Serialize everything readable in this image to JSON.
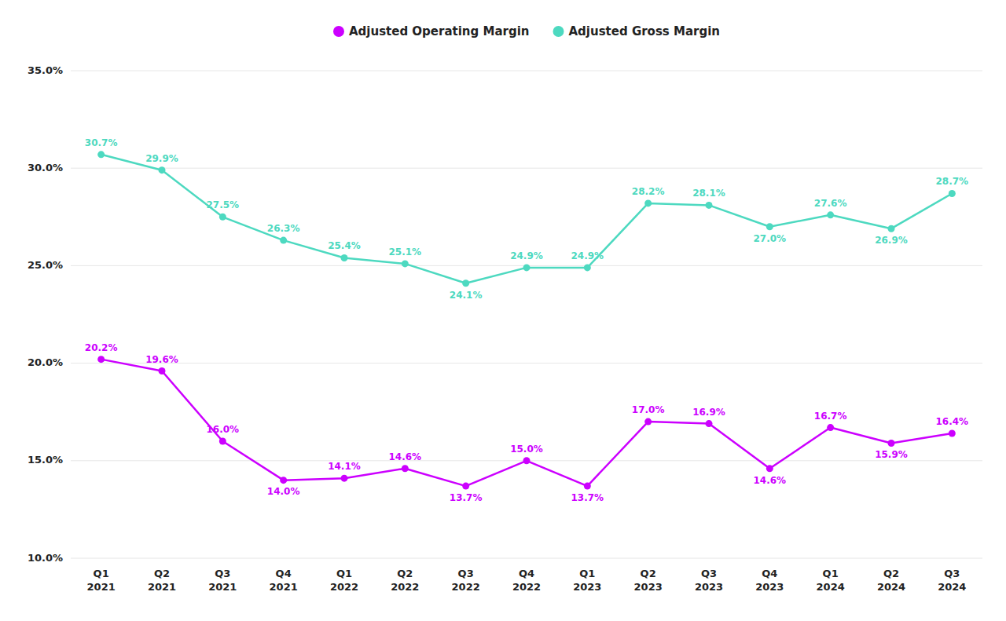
{
  "chart_data": {
    "type": "line",
    "categories": [
      "Q1\n2021",
      "Q2\n2021",
      "Q3\n2021",
      "Q4\n2021",
      "Q1\n2022",
      "Q2\n2022",
      "Q3\n2022",
      "Q4\n2022",
      "Q1\n2023",
      "Q2\n2023",
      "Q3\n2023",
      "Q4\n2023",
      "Q1\n2024",
      "Q2\n2024",
      "Q3\n2024"
    ],
    "series": [
      {
        "name": "Adjusted Gross Margin",
        "color": "#4DD9C0",
        "marker": "circle",
        "values": [
          30.7,
          29.9,
          27.5,
          26.3,
          25.4,
          25.1,
          24.1,
          24.9,
          24.9,
          28.2,
          28.1,
          27.0,
          27.6,
          26.9,
          28.7
        ],
        "value_labels": [
          "30.7%",
          "29.9%",
          "27.5%",
          "26.3%",
          "25.4%",
          "25.1%",
          "24.1%",
          "24.9%",
          "24.9%",
          "28.2%",
          "28.1%",
          "27.0%",
          "27.6%",
          "26.9%",
          "28.7%"
        ]
      },
      {
        "name": "Adjusted Operating Margin",
        "color": "#CC00FF",
        "marker": "circle",
        "values": [
          20.2,
          19.6,
          16.0,
          14.0,
          14.1,
          14.6,
          13.7,
          15.0,
          13.7,
          17.0,
          16.9,
          14.6,
          16.7,
          15.9,
          16.4
        ],
        "value_labels": [
          "20.2%",
          "19.6%",
          "16.0%",
          "14.0%",
          "14.1%",
          "14.6%",
          "13.7%",
          "15.0%",
          "13.7%",
          "17.0%",
          "16.9%",
          "14.6%",
          "16.7%",
          "15.9%",
          "16.4%"
        ]
      }
    ],
    "ylim": [
      10.0,
      35.0
    ],
    "yticks": [
      {
        "value": 10.0,
        "label": "10.0%"
      },
      {
        "value": 15.0,
        "label": "15.0%"
      },
      {
        "value": 20.0,
        "label": "20.0%"
      },
      {
        "value": 25.0,
        "label": "25.0%"
      },
      {
        "value": 30.0,
        "label": "30.0%"
      },
      {
        "value": 35.0,
        "label": "35.0%"
      }
    ],
    "grid": true,
    "legend": "top",
    "data_labels": true
  }
}
